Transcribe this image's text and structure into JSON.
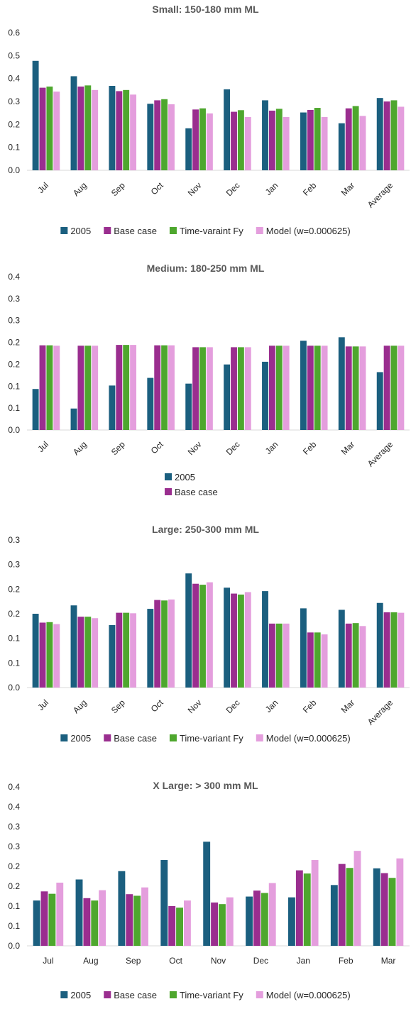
{
  "colors": {
    "2005": "#1b5f7f",
    "base": "#9a2e8f",
    "tv": "#4ea72e",
    "model": "#e49edd",
    "axis": "#d9d9d9",
    "text": "#262626",
    "title": "#595959"
  },
  "chart_data": [
    {
      "type": "bar",
      "title": "Small: 150-180 mm ML",
      "categories": [
        "Jul",
        "Aug",
        "Sep",
        "Oct",
        "Nov",
        "Dec",
        "Jan",
        "Feb",
        "Mar",
        "Average"
      ],
      "y_ticks": [
        "0.0",
        "0.1",
        "0.2",
        "0.3",
        "0.4",
        "0.5",
        "0.6"
      ],
      "ylim": [
        0,
        0.6
      ],
      "x_label_rotation": "rotated",
      "legend_position": "bottom",
      "legend_layout": "row",
      "series": [
        {
          "name": "2005",
          "color_key": "2005",
          "values": [
            0.477,
            0.41,
            0.368,
            0.29,
            0.183,
            0.353,
            0.305,
            0.252,
            0.205,
            0.315
          ]
        },
        {
          "name": "Base case",
          "color_key": "base",
          "values": [
            0.36,
            0.365,
            0.345,
            0.305,
            0.265,
            0.255,
            0.26,
            0.263,
            0.27,
            0.3
          ]
        },
        {
          "name": "Time-varaint Fy",
          "color_key": "tv",
          "values": [
            0.365,
            0.37,
            0.35,
            0.31,
            0.27,
            0.262,
            0.268,
            0.272,
            0.28,
            0.305
          ]
        },
        {
          "name": "Model (w=0.000625)",
          "color_key": "model",
          "values": [
            0.343,
            0.35,
            0.33,
            0.288,
            0.248,
            0.232,
            0.232,
            0.232,
            0.237,
            0.277
          ]
        }
      ]
    },
    {
      "type": "bar",
      "title": "Medium: 180-250 mm ML",
      "categories": [
        "Jul",
        "Aug",
        "Sep",
        "Oct",
        "Nov",
        "Dec",
        "Jan",
        "Feb",
        "Mar",
        "Average"
      ],
      "y_ticks": [
        "0.0",
        "0.1",
        "0.1",
        "0.2",
        "0.2",
        "0.3",
        "0.3",
        "0.4"
      ],
      "ylim": [
        0,
        0.4
      ],
      "x_label_rotation": "rotated",
      "legend_position": "bottom",
      "legend_layout": "column",
      "series": [
        {
          "name": "2005",
          "color_key": "2005",
          "values": [
            0.107,
            0.056,
            0.116,
            0.136,
            0.121,
            0.171,
            0.178,
            0.233,
            0.242,
            0.151
          ]
        },
        {
          "name": "Base case",
          "color_key": "base",
          "values": [
            0.221,
            0.22,
            0.222,
            0.221,
            0.216,
            0.216,
            0.22,
            0.22,
            0.218,
            0.22
          ]
        },
        {
          "name": "Time-varaint Fy",
          "color_key": "tv",
          "values": [
            0.221,
            0.22,
            0.222,
            0.221,
            0.216,
            0.216,
            0.22,
            0.22,
            0.218,
            0.22
          ],
          "legend": false
        },
        {
          "name": "Model (w=0.000625)",
          "color_key": "model",
          "values": [
            0.22,
            0.22,
            0.222,
            0.221,
            0.216,
            0.216,
            0.22,
            0.22,
            0.218,
            0.22
          ],
          "legend": false
        }
      ]
    },
    {
      "type": "bar",
      "title": "Large: 250-300 mm ML",
      "categories": [
        "Jul",
        "Aug",
        "Sep",
        "Oct",
        "Nov",
        "Dec",
        "Jan",
        "Feb",
        "Mar",
        "Average"
      ],
      "y_ticks": [
        "0.0",
        "0.1",
        "0.1",
        "0.2",
        "0.2",
        "0.3",
        "0.3"
      ],
      "ylim": [
        0,
        0.3
      ],
      "x_label_rotation": "rotated",
      "legend_position": "bottom",
      "legend_layout": "row",
      "series": [
        {
          "name": "2005",
          "color_key": "2005",
          "values": [
            0.15,
            0.167,
            0.127,
            0.16,
            0.232,
            0.203,
            0.196,
            0.161,
            0.158,
            0.172
          ]
        },
        {
          "name": "Base case",
          "color_key": "base",
          "values": [
            0.132,
            0.144,
            0.152,
            0.178,
            0.211,
            0.191,
            0.13,
            0.112,
            0.13,
            0.153
          ]
        },
        {
          "name": "Time-variant Fy",
          "color_key": "tv",
          "values": [
            0.133,
            0.144,
            0.152,
            0.177,
            0.209,
            0.189,
            0.13,
            0.112,
            0.131,
            0.153
          ]
        },
        {
          "name": "Model (w=0.000625)",
          "color_key": "model",
          "values": [
            0.129,
            0.141,
            0.151,
            0.179,
            0.214,
            0.194,
            0.13,
            0.108,
            0.125,
            0.152
          ]
        }
      ]
    },
    {
      "type": "bar",
      "title": "X Large: > 300 mm ML",
      "categories": [
        "Jul",
        "Aug",
        "Sep",
        "Oct",
        "Nov",
        "Dec",
        "Jan",
        "Feb",
        "Mar"
      ],
      "y_ticks": [
        "0.0",
        "0.1",
        "0.1",
        "0.2",
        "0.2",
        "0.3",
        "0.3",
        "0.4",
        "0.4"
      ],
      "ylim": [
        0,
        0.4
      ],
      "x_label_rotation": "horizontal",
      "legend_position": "bottom",
      "legend_layout": "row",
      "series": [
        {
          "name": "2005",
          "color_key": "2005",
          "values": [
            0.114,
            0.167,
            0.188,
            0.216,
            0.262,
            0.124,
            0.122,
            0.153,
            0.195
          ]
        },
        {
          "name": "Base case",
          "color_key": "base",
          "values": [
            0.137,
            0.12,
            0.13,
            0.1,
            0.109,
            0.139,
            0.19,
            0.206,
            0.183
          ]
        },
        {
          "name": "Time-variant Fy",
          "color_key": "tv",
          "values": [
            0.131,
            0.114,
            0.126,
            0.096,
            0.105,
            0.133,
            0.182,
            0.196,
            0.171
          ]
        },
        {
          "name": "Model (w=0.000625)",
          "color_key": "model",
          "values": [
            0.159,
            0.14,
            0.147,
            0.114,
            0.122,
            0.158,
            0.216,
            0.239,
            0.22
          ]
        }
      ]
    }
  ]
}
